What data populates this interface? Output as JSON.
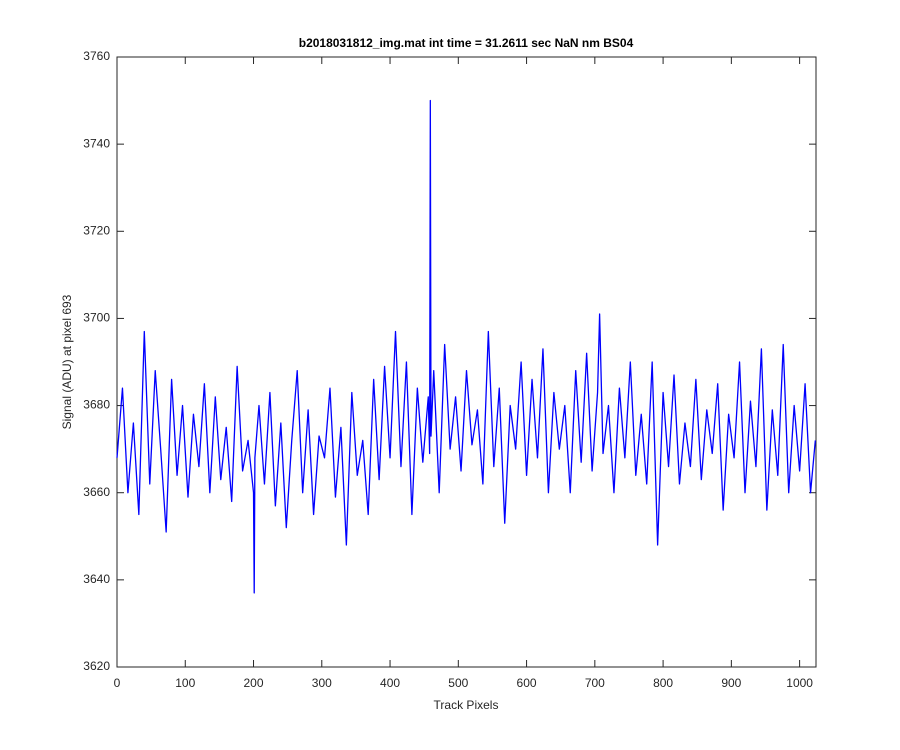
{
  "chart_data": {
    "type": "line",
    "title": "b2018031812_img.mat int time = 31.2611 sec  NaN nm BS04",
    "x_label": "Track Pixels",
    "y_label": "Signal (ADU) at pixel 693",
    "xlim": [
      0,
      1024
    ],
    "ylim": [
      3620,
      3760
    ],
    "xticks": [
      0,
      100,
      200,
      300,
      400,
      500,
      600,
      700,
      800,
      900,
      1000
    ],
    "yticks": [
      3620,
      3640,
      3660,
      3680,
      3700,
      3720,
      3740,
      3760
    ],
    "grid": false,
    "x": [
      0,
      8,
      16,
      24,
      32,
      40,
      48,
      56,
      64,
      72,
      80,
      88,
      96,
      104,
      112,
      120,
      128,
      136,
      144,
      152,
      160,
      168,
      176,
      184,
      192,
      200,
      201,
      202,
      208,
      216,
      224,
      232,
      240,
      248,
      256,
      264,
      272,
      280,
      288,
      296,
      304,
      312,
      320,
      328,
      336,
      344,
      352,
      360,
      368,
      376,
      384,
      392,
      400,
      408,
      416,
      424,
      432,
      440,
      448,
      456,
      458,
      459,
      460,
      464,
      472,
      480,
      488,
      496,
      504,
      512,
      520,
      528,
      536,
      544,
      552,
      560,
      568,
      576,
      584,
      592,
      600,
      608,
      616,
      624,
      632,
      640,
      648,
      656,
      664,
      672,
      680,
      688,
      696,
      704,
      707,
      712,
      720,
      728,
      736,
      744,
      752,
      760,
      768,
      776,
      784,
      792,
      800,
      808,
      816,
      824,
      832,
      840,
      848,
      856,
      864,
      872,
      880,
      888,
      896,
      904,
      912,
      920,
      928,
      936,
      944,
      952,
      960,
      968,
      976,
      984,
      992,
      1000,
      1008,
      1016,
      1023
    ],
    "series": [
      {
        "color": "#0000ff",
        "values": [
          3668,
          3684,
          3660,
          3676,
          3655,
          3697,
          3662,
          3688,
          3670,
          3651,
          3686,
          3664,
          3680,
          3659,
          3678,
          3666,
          3685,
          3660,
          3682,
          3663,
          3675,
          3658,
          3689,
          3665,
          3672,
          3660,
          3637,
          3668,
          3680,
          3662,
          3683,
          3657,
          3676,
          3652,
          3672,
          3688,
          3660,
          3679,
          3655,
          3673,
          3668,
          3684,
          3659,
          3675,
          3648,
          3683,
          3664,
          3672,
          3655,
          3686,
          3663,
          3689,
          3668,
          3697,
          3666,
          3690,
          3655,
          3684,
          3667,
          3682,
          3669,
          3750,
          3673,
          3688,
          3660,
          3694,
          3670,
          3682,
          3665,
          3688,
          3671,
          3679,
          3662,
          3697,
          3666,
          3684,
          3653,
          3680,
          3670,
          3690,
          3664,
          3686,
          3668,
          3693,
          3660,
          3683,
          3670,
          3680,
          3660,
          3688,
          3667,
          3692,
          3665,
          3683,
          3701,
          3669,
          3680,
          3660,
          3684,
          3668,
          3690,
          3664,
          3678,
          3662,
          3690,
          3648,
          3683,
          3666,
          3687,
          3662,
          3676,
          3666,
          3686,
          3663,
          3679,
          3669,
          3685,
          3656,
          3678,
          3668,
          3690,
          3660,
          3681,
          3666,
          3693,
          3656,
          3679,
          3664,
          3694,
          3660,
          3680,
          3665,
          3685,
          3660,
          3672
        ]
      }
    ]
  }
}
